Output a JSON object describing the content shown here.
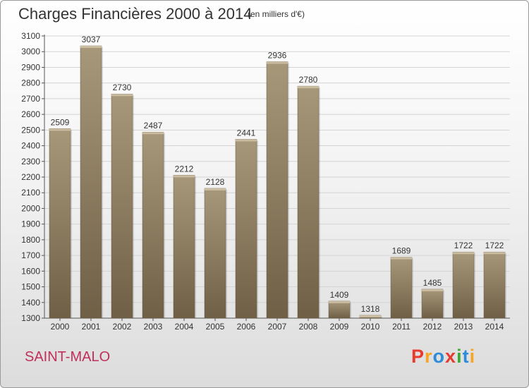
{
  "header": {
    "title": "Charges Financières 2000 à 2014",
    "subtitle": "(en milliers d'€)"
  },
  "footer": {
    "city": "SAINT-MALO",
    "logo": "Proxiti",
    "logo_colors": [
      "#e63b2e",
      "#f5a623",
      "#2e8bd8",
      "#e63b2e",
      "#3aaa35",
      "#2e8bd8",
      "#f5a623"
    ]
  },
  "chart_data": {
    "type": "bar",
    "title": "Charges Financières 2000 à 2014",
    "subtitle": "(en milliers d'€)",
    "categories": [
      "2000",
      "2001",
      "2002",
      "2003",
      "2004",
      "2005",
      "2006",
      "2007",
      "2008",
      "2009",
      "2010",
      "2011",
      "2012",
      "2013",
      "2014"
    ],
    "values": [
      2509,
      3037,
      2730,
      2487,
      2212,
      2128,
      2441,
      2936,
      2780,
      1409,
      1318,
      1689,
      1485,
      1722,
      1722
    ],
    "ylim": [
      1300,
      3100
    ],
    "yticks": [
      1300,
      1400,
      1500,
      1600,
      1700,
      1800,
      1900,
      2000,
      2100,
      2200,
      2300,
      2400,
      2500,
      2600,
      2700,
      2800,
      2900,
      3000,
      3100
    ],
    "grid": true,
    "bar_color": "#8b7a5e"
  }
}
